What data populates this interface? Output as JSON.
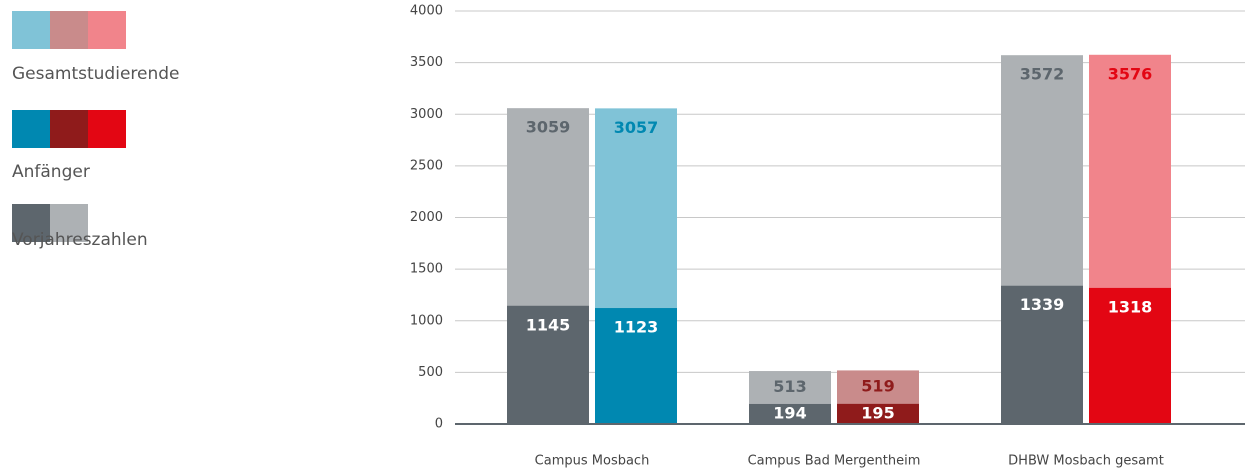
{
  "chart_data": {
    "type": "bar",
    "categories": [
      "Campus Mosbach",
      "Campus Bad Mergentheim",
      "DHBW Mosbach gesamt"
    ],
    "series": [
      {
        "name": "Gesamtstudierende",
        "values": [
          3057,
          519,
          3576
        ],
        "colors": [
          "#80c3d7",
          "#c98b8b",
          "#f1848b"
        ]
      },
      {
        "name": "Anfänger",
        "values": [
          1123,
          195,
          1318
        ],
        "colors": [
          "#0088b1",
          "#8f1b1b",
          "#e30613"
        ]
      },
      {
        "name": "Vorjahreszahlen",
        "totals": [
          3059,
          513,
          3572
        ],
        "beginners": [
          1145,
          194,
          1339
        ],
        "colors": [
          "#5d666d",
          "#adb1b4"
        ]
      }
    ],
    "ylim": [
      0,
      4000
    ],
    "yticks": [
      0,
      500,
      1000,
      1500,
      2000,
      2500,
      3000,
      3500,
      4000
    ],
    "grid": true
  }
}
